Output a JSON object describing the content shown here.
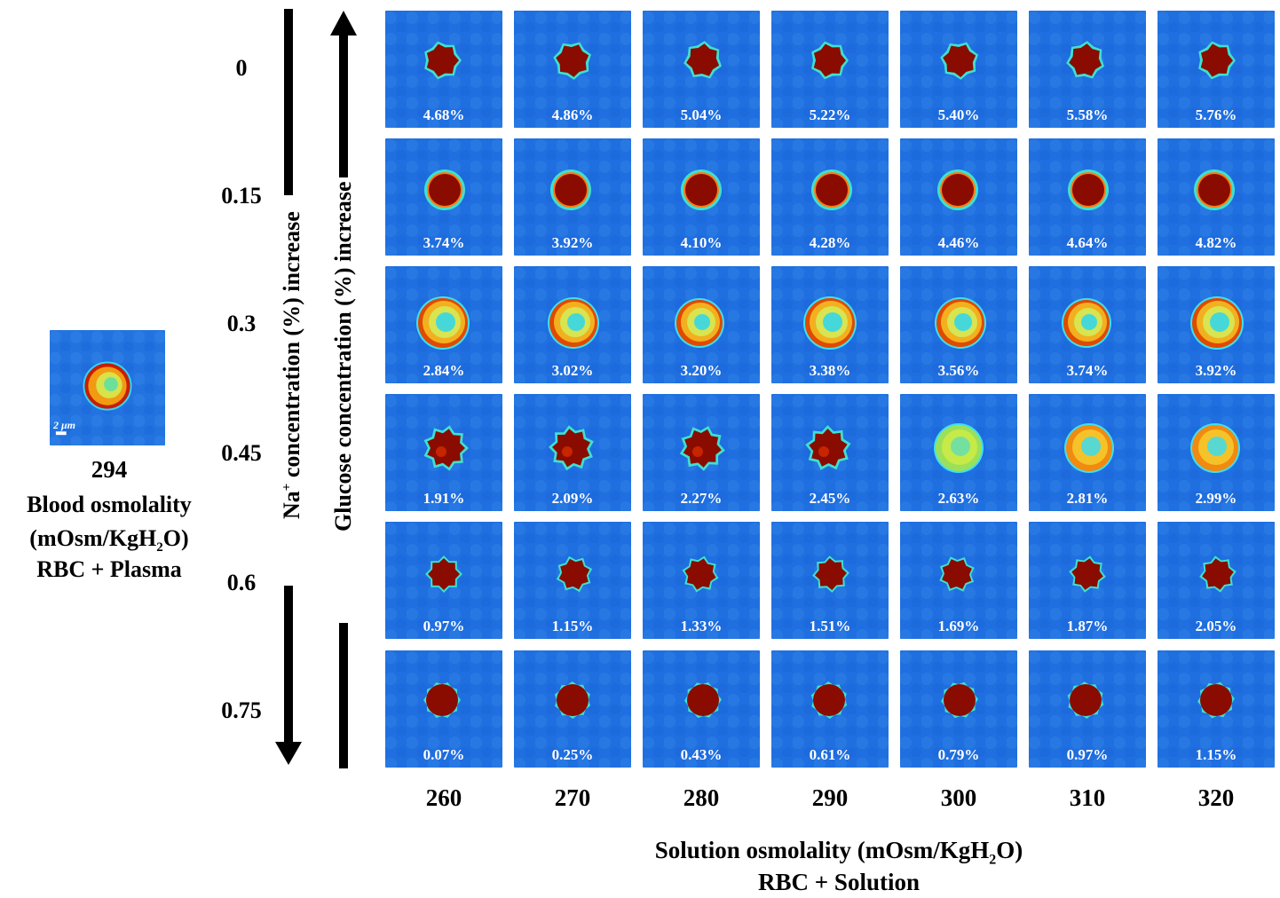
{
  "reference": {
    "value": "294",
    "line1": "Blood osmolality",
    "unit_prefix": "(mOsm/KgH",
    "unit_sub": "2",
    "unit_suffix": "O)",
    "line3": "RBC + Plasma",
    "scale_bar": "2 μm"
  },
  "na_axis": {
    "prefix": "Na",
    "sup": "+",
    "suffix": " concentration (%) increase"
  },
  "glucose_axis": {
    "label": "Glucose concentration (%) increase"
  },
  "row_labels": [
    "0",
    "0.15",
    "0.3",
    "0.45",
    "0.6",
    "0.75"
  ],
  "col_labels": [
    "260",
    "270",
    "280",
    "290",
    "300",
    "310",
    "320"
  ],
  "x_axis": {
    "prefix": "Solution osmolality (mOsm/KgH",
    "sub": "2",
    "suffix": "O)",
    "line2": "RBC + Solution"
  },
  "grid": {
    "cell_shapes": [
      "crenated-dark",
      "sphere-dark",
      "biconcave-ring",
      "echinocyte",
      "echinocyte-small",
      "sphere-dark-small"
    ],
    "percentages": [
      [
        "4.68%",
        "4.86%",
        "5.04%",
        "5.22%",
        "5.40%",
        "5.58%",
        "5.76%"
      ],
      [
        "3.74%",
        "3.92%",
        "4.10%",
        "4.28%",
        "4.46%",
        "4.64%",
        "4.82%"
      ],
      [
        "2.84%",
        "3.02%",
        "3.20%",
        "3.38%",
        "3.56%",
        "3.74%",
        "3.92%"
      ],
      [
        "1.91%",
        "2.09%",
        "2.27%",
        "2.45%",
        "2.63%",
        "2.81%",
        "2.99%"
      ],
      [
        "0.97%",
        "1.15%",
        "1.33%",
        "1.51%",
        "1.69%",
        "1.87%",
        "2.05%"
      ],
      [
        "0.07%",
        "0.25%",
        "0.43%",
        "0.61%",
        "0.79%",
        "0.97%",
        "1.15%"
      ]
    ]
  },
  "colors": {
    "background": "#1f6fe0",
    "cell_dark": "#8a0c00",
    "cell_ring": "#f0c020",
    "cell_center": "#37d6e0"
  }
}
